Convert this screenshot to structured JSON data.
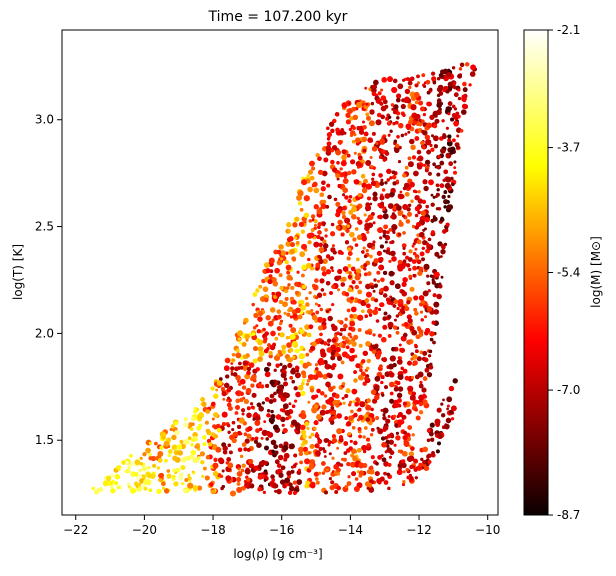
{
  "chart_data": {
    "type": "scatter",
    "title": "Time = 107.200 kyr",
    "xlabel": "log(ρ) [g cm⁻³]",
    "ylabel": "log(T) [K]",
    "xlim": [
      -22.4,
      -9.7
    ],
    "ylim": [
      1.15,
      3.42
    ],
    "xticks": [
      -22,
      -20,
      -18,
      -16,
      -14,
      -12,
      -10
    ],
    "xtick_labels": [
      "−22",
      "−20",
      "−18",
      "−16",
      "−14",
      "−12",
      "−10"
    ],
    "yticks": [
      1.5,
      2.0,
      2.5,
      3.0
    ],
    "ytick_labels": [
      "1.5",
      "2.0",
      "2.5",
      "3.0"
    ],
    "colorbar": {
      "label": "log(M) [M⊙]",
      "colormap": "hot",
      "range": [
        -8.7,
        -2.1
      ],
      "ticks": [
        -8.7,
        -7.0,
        -5.4,
        -3.7,
        -2.1
      ],
      "tick_labels": [
        "-8.7",
        "-7.0",
        "-5.4",
        "-3.7",
        "-2.1"
      ]
    },
    "grid": false,
    "point_cloud_outline": [
      [
        -21.8,
        1.25
      ],
      [
        -20.5,
        1.26
      ],
      [
        -19.0,
        1.26
      ],
      [
        -17.5,
        1.25
      ],
      [
        -16.0,
        1.25
      ],
      [
        -14.5,
        1.25
      ],
      [
        -13.6,
        1.26
      ],
      [
        -12.8,
        1.27
      ],
      [
        -12.0,
        1.32
      ],
      [
        -11.5,
        1.42
      ],
      [
        -11.0,
        1.6
      ],
      [
        -10.9,
        1.82
      ],
      [
        -11.2,
        1.75
      ],
      [
        -11.5,
        1.6
      ],
      [
        -11.9,
        1.5
      ],
      [
        -11.6,
        1.9
      ],
      [
        -11.2,
        2.4
      ],
      [
        -10.9,
        2.8
      ],
      [
        -10.6,
        3.1
      ],
      [
        -10.25,
        3.3
      ],
      [
        -10.7,
        3.27
      ],
      [
        -11.5,
        3.22
      ],
      [
        -12.5,
        3.2
      ],
      [
        -13.3,
        3.18
      ],
      [
        -14.0,
        3.1
      ],
      [
        -14.6,
        3.0
      ],
      [
        -15.0,
        2.83
      ],
      [
        -15.4,
        2.72
      ],
      [
        -15.7,
        2.55
      ],
      [
        -16.1,
        2.42
      ],
      [
        -16.6,
        2.28
      ],
      [
        -17.0,
        2.1
      ],
      [
        -17.5,
        1.92
      ],
      [
        -18.0,
        1.75
      ],
      [
        -18.6,
        1.65
      ],
      [
        -19.2,
        1.57
      ],
      [
        -19.8,
        1.5
      ],
      [
        -20.4,
        1.43
      ],
      [
        -20.9,
        1.35
      ],
      [
        -21.4,
        1.29
      ],
      [
        -21.8,
        1.25
      ]
    ],
    "notes_visual": "dense scatter of fragments colored by log(M); coolest/brightest (yellow) at low density, darker red at high density"
  }
}
